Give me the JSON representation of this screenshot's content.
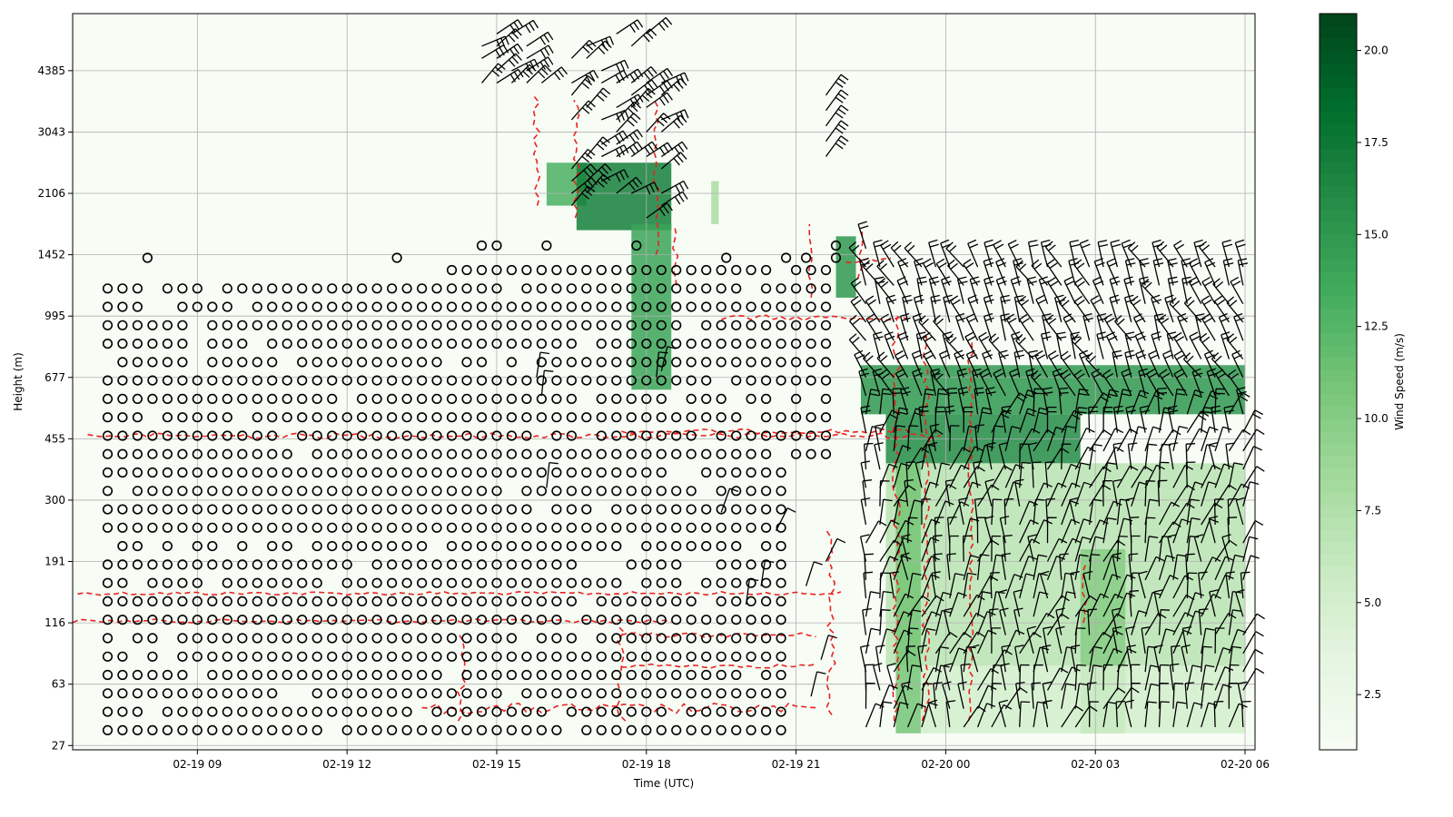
{
  "chart_data": {
    "type": "heatmap",
    "xlabel": "Time (UTC)",
    "ylabel": "Height (m)",
    "colorbar_label": "Wind Speed (m/s)",
    "colormap": "Greens",
    "x_ticks": [
      "02-19 09",
      "02-19 12",
      "02-19 15",
      "02-19 18",
      "02-19 21",
      "02-20 00",
      "02-20 03",
      "02-20 06"
    ],
    "y_ticks": [
      "27",
      "63",
      "116",
      "191",
      "300",
      "455",
      "677",
      "995",
      "1452",
      "2106",
      "3043",
      "4385"
    ],
    "colorbar_ticks": [
      "2.5",
      "5.0",
      "7.5",
      "10.0",
      "12.5",
      "15.0",
      "17.5",
      "20.0"
    ],
    "colorbar_range": [
      1.0,
      21.0
    ],
    "grid": true,
    "overlays": [
      "wind barbs (black)",
      "calm-wind circles (black)",
      "dashed contour (red)"
    ],
    "speed_regions": [
      {
        "t0": 16.0,
        "t1": 16.8,
        "h0": 8.8,
        "h1": 9.5,
        "speed": 13
      },
      {
        "t0": 16.6,
        "t1": 18.5,
        "h0": 8.4,
        "h1": 9.5,
        "speed": 17
      },
      {
        "t0": 17.7,
        "t1": 18.5,
        "h0": 5.8,
        "h1": 8.5,
        "speed": 14
      },
      {
        "t0": 19.3,
        "t1": 19.45,
        "h0": 8.5,
        "h1": 9.2,
        "speed": 8
      },
      {
        "t0": 21.8,
        "t1": 22.2,
        "h0": 7.3,
        "h1": 8.3,
        "speed": 15
      },
      {
        "t0": 22.3,
        "t1": 30.0,
        "h0": 5.4,
        "h1": 6.2,
        "speed": 15
      },
      {
        "t0": 22.8,
        "t1": 26.7,
        "h0": 4.6,
        "h1": 5.4,
        "speed": 16
      },
      {
        "t0": 22.8,
        "t1": 30.0,
        "h0": 1.3,
        "h1": 4.6,
        "speed": 7
      },
      {
        "t0": 23.0,
        "t1": 23.5,
        "h0": 0.2,
        "h1": 4.6,
        "speed": 11
      },
      {
        "t0": 26.7,
        "t1": 27.6,
        "h0": 0.2,
        "h1": 3.2,
        "speed": 10
      },
      {
        "t0": 23.5,
        "t1": 30.0,
        "h0": 0.2,
        "h1": 1.3,
        "speed": 5
      }
    ]
  }
}
